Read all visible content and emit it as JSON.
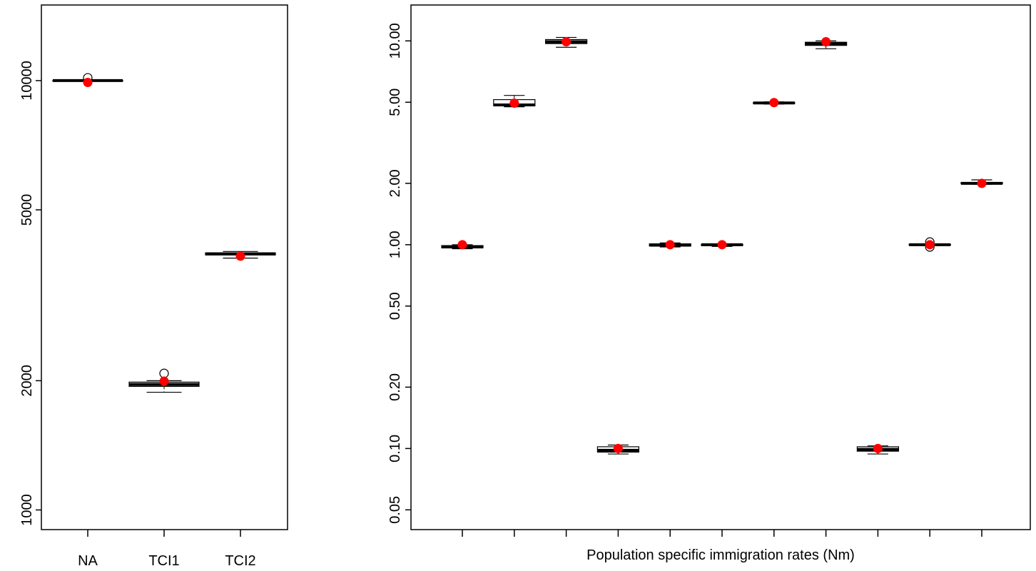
{
  "chart_data": [
    {
      "type": "boxplot",
      "title": "",
      "xlabel": "",
      "ylabel": "",
      "y_scale": "log",
      "ylim": [
        900,
        15000
      ],
      "yticks": [
        1000,
        2000,
        5000,
        10000
      ],
      "ytick_labels": [
        "1000",
        "2000",
        "5000",
        "10000"
      ],
      "categories": [
        "NA",
        "TCI1",
        "TCI2"
      ],
      "boxes": [
        {
          "whisker_low": 9980,
          "q1": 9990,
          "median": 10000,
          "q3": 10010,
          "whisker_high": 10020,
          "outliers": [
            10150
          ],
          "point": 9900
        },
        {
          "whisker_low": 1880,
          "q1": 1940,
          "median": 1960,
          "q3": 1985,
          "whisker_high": 2000,
          "outliers": [
            2080
          ],
          "point": 1995
        },
        {
          "whisker_low": 3860,
          "q1": 3925,
          "median": 3950,
          "q3": 3970,
          "whisker_high": 4000,
          "outliers": [],
          "point": 3900
        }
      ],
      "point_color": "#ff0000"
    },
    {
      "type": "boxplot",
      "title": "",
      "xlabel": "Population specific immigration rates (Nm)",
      "ylabel": "",
      "y_scale": "log",
      "ylim": [
        0.04,
        15
      ],
      "yticks": [
        0.05,
        0.1,
        0.2,
        0.5,
        1,
        2,
        5,
        10
      ],
      "ytick_labels": [
        "0.05",
        "0.10",
        "0.20",
        "0.50",
        "1.00",
        "2.00",
        "5.00",
        "10.00"
      ],
      "categories": [
        "",
        "",
        "",
        "",
        "",
        "",
        "",
        "",
        "",
        "",
        ""
      ],
      "boxes": [
        {
          "whisker_low": 0.955,
          "q1": 0.965,
          "median": 0.975,
          "q3": 0.99,
          "whisker_high": 1.0,
          "outliers": [],
          "point": 1.0
        },
        {
          "whisker_low": 4.75,
          "q1": 4.8,
          "median": 4.85,
          "q3": 5.15,
          "whisker_high": 5.4,
          "outliers": [],
          "point": 4.95
        },
        {
          "whisker_low": 9.3,
          "q1": 9.7,
          "median": 9.9,
          "q3": 10.15,
          "whisker_high": 10.4,
          "outliers": [],
          "point": 9.9
        },
        {
          "whisker_low": 0.094,
          "q1": 0.096,
          "median": 0.098,
          "q3": 0.102,
          "whisker_high": 0.104,
          "outliers": [],
          "point": 0.1
        },
        {
          "whisker_low": 0.975,
          "q1": 0.985,
          "median": 0.995,
          "q3": 1.01,
          "whisker_high": 1.02,
          "outliers": [],
          "point": 1.0
        },
        {
          "whisker_low": 0.98,
          "q1": 0.99,
          "median": 1.0,
          "q3": 1.005,
          "whisker_high": 1.01,
          "outliers": [],
          "point": 1.0
        },
        {
          "whisker_low": 4.9,
          "q1": 4.93,
          "median": 4.96,
          "q3": 4.99,
          "whisker_high": 5.02,
          "outliers": [],
          "point": 4.98
        },
        {
          "whisker_low": 9.15,
          "q1": 9.5,
          "median": 9.7,
          "q3": 9.85,
          "whisker_high": 10.0,
          "outliers": [],
          "point": 9.9
        },
        {
          "whisker_low": 0.094,
          "q1": 0.097,
          "median": 0.099,
          "q3": 0.102,
          "whisker_high": 0.103,
          "outliers": [],
          "point": 0.1
        },
        {
          "whisker_low": 0.99,
          "q1": 0.995,
          "median": 1.0,
          "q3": 1.005,
          "whisker_high": 1.01,
          "outliers": [
            1.03,
            0.975
          ],
          "point": 1.0
        },
        {
          "whisker_low": 1.98,
          "q1": 1.99,
          "median": 2.0,
          "q3": 2.02,
          "whisker_high": 2.08,
          "outliers": [],
          "point": 2.0
        }
      ],
      "point_color": "#ff0000"
    }
  ]
}
